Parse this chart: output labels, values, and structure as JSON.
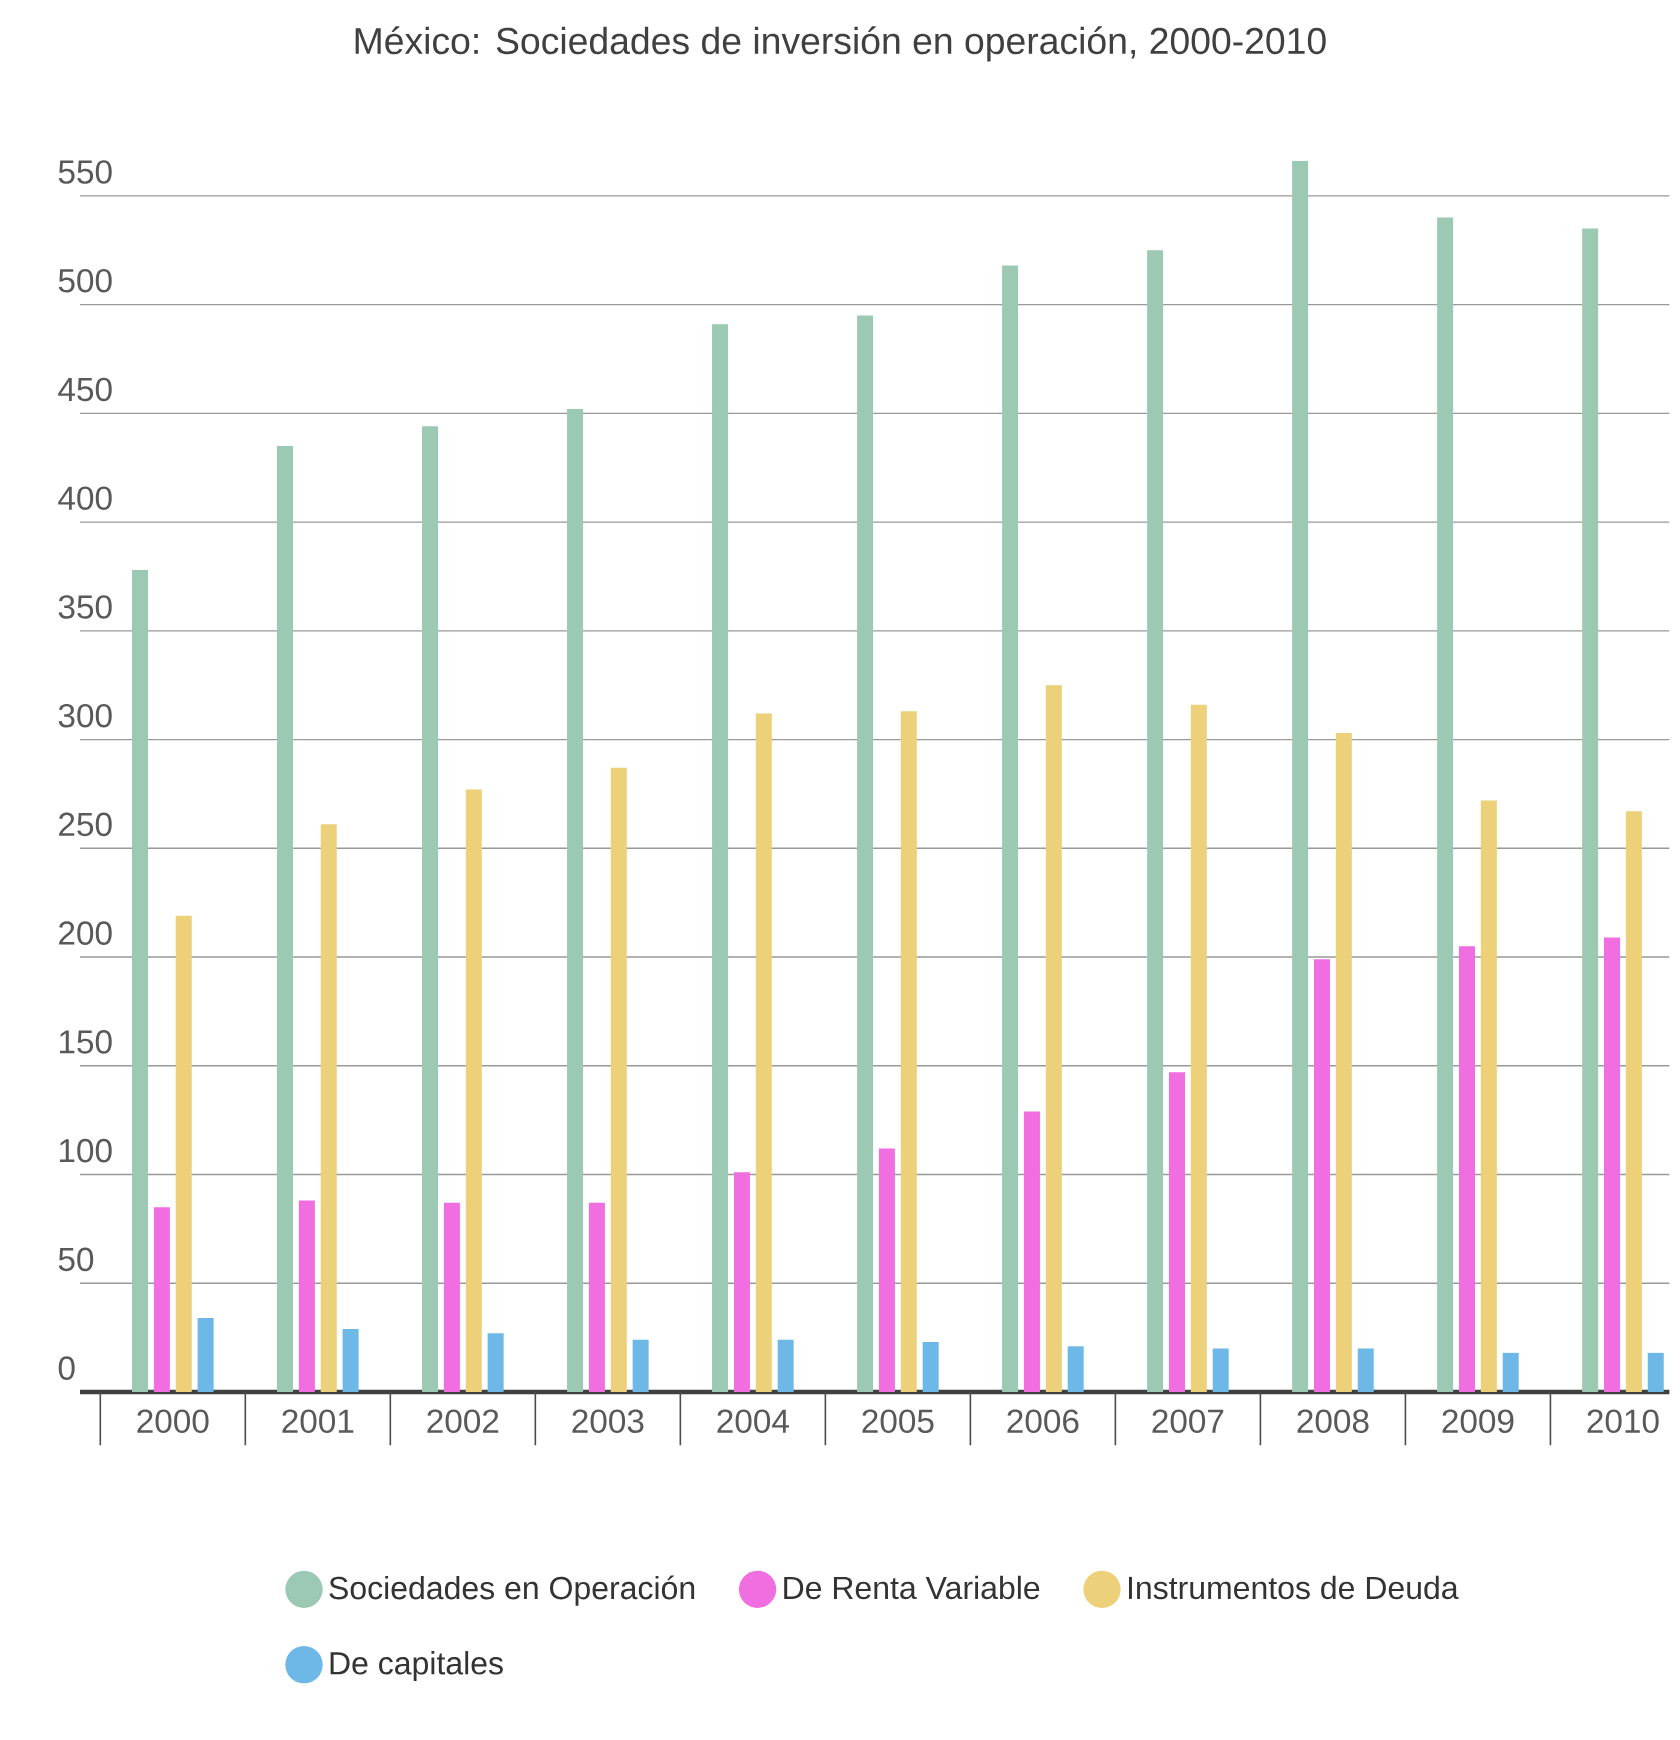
{
  "chart_data": {
    "type": "bar",
    "title": "México: Sociedades de inversión en operación, 2000-2010",
    "categories": [
      "2000",
      "2001",
      "2002",
      "2003",
      "2004",
      "2005",
      "2006",
      "2007",
      "2008",
      "2009",
      "2010"
    ],
    "series": [
      {
        "name": "Sociedades en Operación",
        "color": "#9cc9b4",
        "values": [
          378,
          435,
          444,
          452,
          491,
          495,
          518,
          525,
          566,
          540,
          535
        ]
      },
      {
        "name": "De Renta Variable",
        "color": "#f06ee0",
        "values": [
          85,
          88,
          87,
          87,
          101,
          112,
          129,
          147,
          199,
          205,
          209
        ]
      },
      {
        "name": "Instrumentos de Deuda",
        "color": "#ecd07a",
        "values": [
          219,
          261,
          277,
          287,
          312,
          313,
          325,
          316,
          303,
          272,
          267
        ]
      },
      {
        "name": "De capitales",
        "color": "#6db8e6",
        "values": [
          34,
          29,
          27,
          24,
          24,
          23,
          21,
          20,
          20,
          18,
          18
        ]
      }
    ],
    "ylim": [
      0,
      566
    ],
    "yticks": [
      0,
      50,
      100,
      150,
      200,
      250,
      300,
      350,
      400,
      450,
      500,
      550
    ],
    "grid": "y",
    "legend": "bottom"
  }
}
